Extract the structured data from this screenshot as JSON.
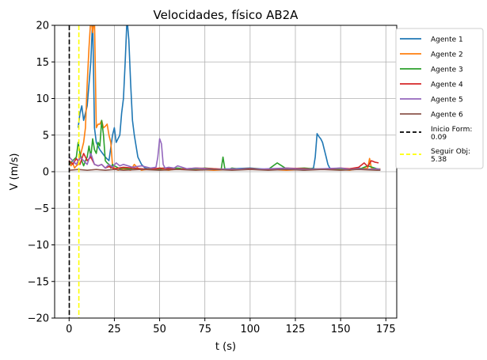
{
  "chart_data": {
    "type": "line",
    "title": "Velocidades, físico AB2A",
    "xlabel": "t (s)",
    "ylabel": "V (m/s)",
    "xlim": [
      -8,
      181
    ],
    "ylim": [
      -20,
      20
    ],
    "xticks": [
      0,
      25,
      50,
      75,
      100,
      125,
      150,
      175
    ],
    "yticks": [
      -20,
      -15,
      -10,
      -5,
      0,
      5,
      10,
      15,
      20
    ],
    "grid": true,
    "legend_position": "outside-right",
    "series": [
      {
        "name": "Agente 1",
        "color": "#1f77b4",
        "x": [
          5,
          6,
          7,
          8,
          9,
          10,
          11,
          12,
          13,
          14,
          15,
          17,
          20,
          22,
          24,
          25,
          26,
          27,
          28,
          29,
          30,
          31,
          32,
          33,
          34,
          35,
          36,
          38,
          40,
          42,
          45,
          50,
          55,
          60,
          70,
          80,
          90,
          100,
          110,
          120,
          130,
          135,
          136,
          137,
          138,
          139,
          140,
          141,
          142,
          143,
          144,
          146,
          150,
          155,
          160,
          165,
          170,
          172
        ],
        "y": [
          6,
          8,
          9,
          7,
          8,
          9,
          12,
          15,
          21,
          6,
          4,
          3,
          2,
          1.5,
          5,
          6,
          4,
          4.5,
          5,
          8,
          10,
          15,
          21,
          18,
          12,
          7,
          5,
          2,
          1,
          0.5,
          0.3,
          0.4,
          0.5,
          0.3,
          0.4,
          0.3,
          0.4,
          0.5,
          0.3,
          0.4,
          0.2,
          0.5,
          2,
          5.2,
          4.8,
          4.5,
          4,
          3,
          2,
          1,
          0.5,
          0.3,
          0.3,
          0.4,
          0.5,
          0.3,
          0.4,
          0.3
        ]
      },
      {
        "name": "Agente 2",
        "color": "#ff7f0e",
        "x": [
          0,
          1,
          2,
          3,
          4,
          5,
          6,
          7,
          8,
          9,
          10,
          11,
          12,
          13,
          14,
          15,
          16,
          17,
          18,
          19,
          20,
          21,
          22,
          23,
          24,
          25,
          27,
          30,
          32,
          34,
          36,
          38,
          40,
          45,
          50,
          55,
          60,
          70,
          80,
          90,
          100,
          110,
          120,
          130,
          140,
          150,
          155,
          160,
          165,
          166,
          167,
          170,
          172
        ],
        "y": [
          1.5,
          0.8,
          1.2,
          0.5,
          0.8,
          1,
          2,
          3,
          4,
          6,
          12,
          17,
          21,
          19,
          21,
          6,
          6.5,
          6.5,
          7,
          6,
          6.2,
          6.5,
          5,
          4,
          0.8,
          0.5,
          0.2,
          0.4,
          0.3,
          0.2,
          1,
          0.5,
          0.2,
          0.4,
          0.3,
          0.2,
          0.4,
          0.3,
          0.2,
          0.3,
          0.4,
          0.3,
          0.2,
          0.3,
          0.4,
          0.3,
          0.2,
          0.4,
          0.5,
          1.8,
          0.5,
          0.3,
          0.4
        ]
      },
      {
        "name": "Agente 3",
        "color": "#2ca02c",
        "x": [
          0,
          2,
          4,
          5,
          6,
          7,
          8,
          9,
          10,
          11,
          12,
          13,
          14,
          15,
          16,
          17,
          18,
          19,
          20,
          21,
          22,
          23,
          24,
          25,
          28,
          30,
          35,
          40,
          45,
          50,
          52,
          55,
          60,
          65,
          70,
          75,
          80,
          84,
          85,
          86,
          88,
          90,
          95,
          100,
          110,
          115,
          120,
          130,
          140,
          150,
          160,
          165,
          170,
          172
        ],
        "y": [
          1,
          1.5,
          2,
          4,
          2.5,
          1.5,
          0.8,
          1.5,
          2,
          3.5,
          2,
          4.5,
          3,
          2.5,
          4,
          3.5,
          7,
          5,
          1.5,
          1.2,
          1,
          0.5,
          1,
          0.8,
          0.4,
          0.5,
          0.3,
          0.3,
          0.4,
          0.3,
          0.5,
          0.4,
          0.5,
          0.3,
          0.4,
          0.5,
          0.4,
          0.3,
          2,
          0.4,
          0.3,
          0.5,
          0.3,
          0.4,
          0.3,
          1.2,
          0.4,
          0.5,
          0.3,
          0.4,
          0.3,
          0.8,
          0.4,
          0.3
        ]
      },
      {
        "name": "Agente 4",
        "color": "#d62728",
        "x": [
          0,
          2,
          4,
          6,
          8,
          9,
          10,
          12,
          14,
          16,
          18,
          20,
          22,
          25,
          30,
          35,
          40,
          45,
          50,
          55,
          60,
          70,
          80,
          90,
          100,
          110,
          120,
          130,
          140,
          150,
          155,
          160,
          163,
          165,
          167,
          169,
          171
        ],
        "y": [
          1.5,
          1,
          1.8,
          1,
          2.5,
          2,
          1.5,
          2,
          1,
          0.8,
          1,
          0.5,
          0.7,
          0.4,
          0.6,
          0.5,
          0.4,
          0.3,
          0.5,
          0.4,
          0.3,
          0.5,
          0.4,
          0.3,
          0.4,
          0.3,
          0.5,
          0.4,
          0.3,
          0.5,
          0.4,
          0.6,
          1.2,
          0.7,
          1.5,
          1.3,
          1.2
        ]
      },
      {
        "name": "Agente 5",
        "color": "#9467bd",
        "x": [
          0,
          2,
          4,
          6,
          8,
          10,
          12,
          14,
          16,
          18,
          20,
          22,
          24,
          26,
          28,
          30,
          35,
          40,
          45,
          48,
          49,
          50,
          51,
          52,
          53,
          55,
          58,
          60,
          65,
          70,
          80,
          90,
          100,
          110,
          120,
          130,
          140,
          150,
          155,
          160,
          165,
          170,
          172
        ],
        "y": [
          2,
          1.5,
          1,
          2,
          1.5,
          1,
          2.5,
          1,
          0.8,
          1,
          0.5,
          1,
          0.6,
          1.2,
          0.8,
          1,
          0.6,
          0.8,
          0.5,
          0.6,
          2,
          4.5,
          3.8,
          1,
          0.5,
          0.6,
          0.5,
          0.8,
          0.4,
          0.5,
          0.3,
          0.4,
          0.3,
          0.4,
          0.5,
          0.3,
          0.4,
          0.5,
          0.3,
          0.4,
          0.3,
          0.4,
          0.3
        ]
      },
      {
        "name": "Agente 6",
        "color": "#8c564b",
        "x": [
          0,
          5,
          10,
          15,
          20,
          25,
          30,
          40,
          50,
          60,
          70,
          80,
          90,
          100,
          110,
          120,
          130,
          140,
          150,
          160,
          170,
          172
        ],
        "y": [
          0.2,
          0.3,
          0.2,
          0.3,
          0.2,
          0.3,
          0.2,
          0.3,
          0.2,
          0.3,
          0.2,
          0.3,
          0.2,
          0.3,
          0.2,
          0.3,
          0.2,
          0.3,
          0.2,
          0.3,
          0.2,
          0.2
        ]
      }
    ],
    "vlines": [
      {
        "name": "Inicio Form: 0.09",
        "x": 0.09,
        "color": "#000000"
      },
      {
        "name": "Seguir Obj: 5.38",
        "x": 5.38,
        "color": "#ffff00"
      }
    ]
  }
}
